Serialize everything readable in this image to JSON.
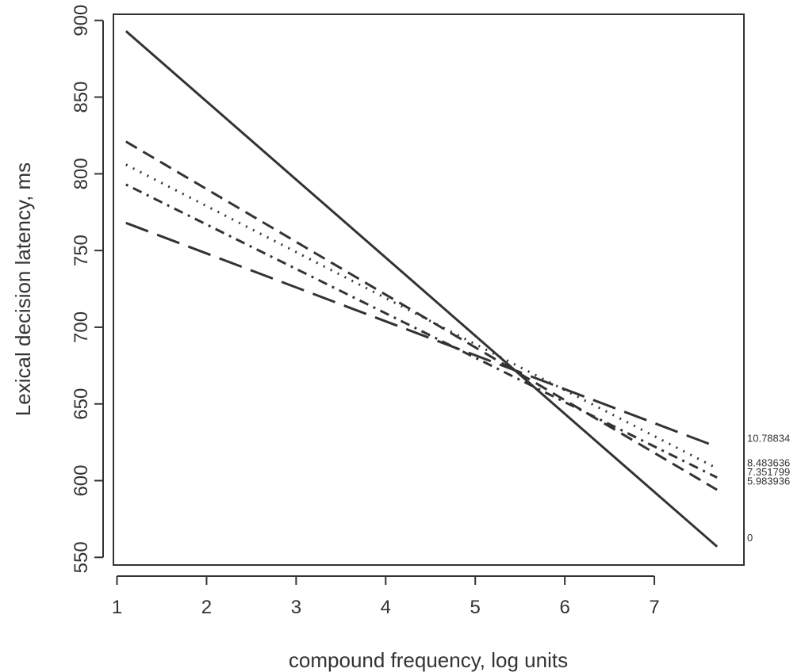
{
  "chart_data": {
    "type": "line",
    "title": "",
    "xlabel": "compound frequency, log units",
    "ylabel": "Lexical decision latency, ms",
    "xlim": [
      0.96,
      8.0
    ],
    "ylim": [
      545,
      904
    ],
    "xticks": [
      1,
      2,
      3,
      4,
      5,
      6,
      7
    ],
    "yticks": [
      550,
      600,
      650,
      700,
      750,
      800,
      850,
      900
    ],
    "xtick_labels": [
      "1",
      "2",
      "3",
      "4",
      "5",
      "6",
      "7"
    ],
    "ytick_labels": [
      "550",
      "600",
      "650",
      "700",
      "750",
      "800",
      "850",
      "900"
    ],
    "x_range": [
      1.1,
      7.7
    ],
    "grid": false,
    "legend": "none (series labeled at right end of lines)",
    "series": [
      {
        "name": "0",
        "style": "solid",
        "values": [
          893,
          557
        ]
      },
      {
        "name": "5.983936",
        "style": "dashed",
        "values": [
          821,
          594
        ]
      },
      {
        "name": "7.351799",
        "style": "dashdot",
        "values": [
          793,
          602
        ]
      },
      {
        "name": "8.483636",
        "style": "dotted",
        "values": [
          806,
          608
        ]
      },
      {
        "name": "10.78834",
        "style": "longdash",
        "values": [
          768,
          622
        ]
      }
    ],
    "series_labels": [
      {
        "text": "10.78834",
        "y": 628
      },
      {
        "text": "8.483636",
        "y": 612
      },
      {
        "text": "7.351799",
        "y": 606
      },
      {
        "text": "5.983936",
        "y": 600
      },
      {
        "text": "0",
        "y": 563
      }
    ]
  }
}
